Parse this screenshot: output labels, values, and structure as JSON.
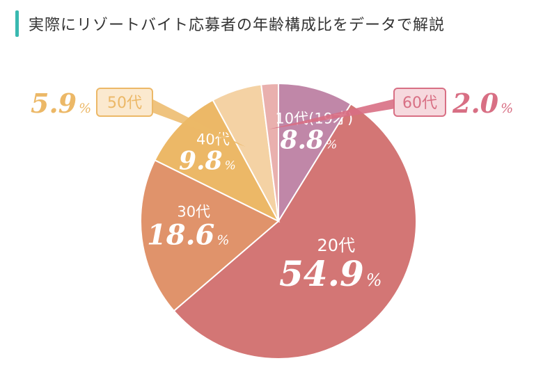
{
  "title": "実際にリゾートバイト応募者の年齢構成比をデータで解説",
  "colors": {
    "accent": "#39b9b0",
    "title_text": "#333333",
    "label_text": "#ffffff"
  },
  "chart_data": {
    "type": "pie",
    "title": "",
    "start": "top",
    "direction": "clockwise",
    "slices": [
      {
        "category": "10代(19才)",
        "value": 8.8,
        "value_text": "8.8",
        "unit": "%",
        "color": "#c087a8",
        "label_style": "inside"
      },
      {
        "category": "20代",
        "value": 54.9,
        "value_text": "54.9",
        "unit": "%",
        "color": "#d37675",
        "label_style": "inside"
      },
      {
        "category": "30代",
        "value": 18.6,
        "value_text": "18.6",
        "unit": "%",
        "color": "#e0936b",
        "label_style": "inside"
      },
      {
        "category": "40代",
        "value": 9.8,
        "value_text": "9.8",
        "unit": "%",
        "color": "#ecb867",
        "label_style": "inside"
      },
      {
        "category": "50代",
        "value": 5.9,
        "value_text": "5.9",
        "unit": "%",
        "color": "#f4d2a4",
        "label_style": "callout-left",
        "callout_color": "#ecb867"
      },
      {
        "category": "60代",
        "value": 2.0,
        "value_text": "2.0",
        "unit": "%",
        "color": "#e9b0ae",
        "label_style": "callout-right",
        "callout_color": "#d86f84"
      }
    ]
  }
}
